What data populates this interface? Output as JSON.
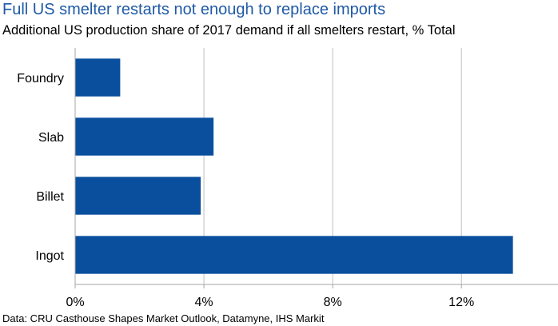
{
  "title": "Full US smelter restarts not enough to replace imports",
  "subtitle": "Additional US production share of 2017 demand if all smelters restart, % Total",
  "source": "Data: CRU Casthouse Shapes Market Outlook, Datamyne, IHS Markit",
  "colors": {
    "title": "#1f5aa6",
    "bar": "#0a4f9e",
    "grid": "#bfbfbf",
    "axis": "#a6a6a6",
    "text": "#000000"
  },
  "chart_data": {
    "type": "bar",
    "orientation": "horizontal",
    "categories": [
      "Foundry",
      "Slab",
      "Billet",
      "Ingot"
    ],
    "values": [
      1.4,
      4.3,
      3.9,
      13.6
    ],
    "unit": "%",
    "xlim": [
      0,
      15
    ],
    "x_ticks": [
      0,
      4,
      8,
      12
    ],
    "x_tick_labels": [
      "0%",
      "4%",
      "8%",
      "12%"
    ],
    "grid": true
  }
}
